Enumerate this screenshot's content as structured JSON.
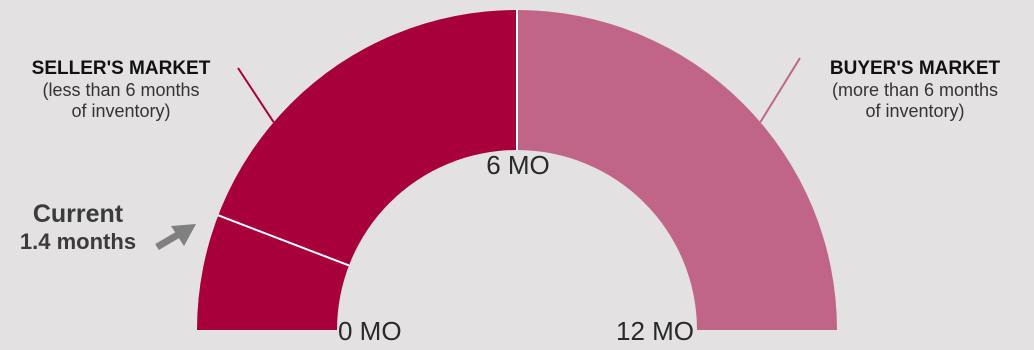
{
  "colors": {
    "background": "#e3e1e1",
    "seller": "#a7003b",
    "buyer": "#c06587",
    "divider": "#ffffff",
    "arrow": "#808080"
  },
  "chart_data": {
    "type": "gauge",
    "min": 0,
    "max": 12,
    "unit": "months of inventory",
    "current": 1.4,
    "segments": [
      {
        "name": "SELLER'S MARKET",
        "from": 0,
        "to": 6
      },
      {
        "name": "BUYER'S MARKET",
        "from": 6,
        "to": 12
      }
    ],
    "ticks": [
      {
        "value": 0,
        "label": "0 MO"
      },
      {
        "value": 6,
        "label": "6 MO"
      },
      {
        "value": 12,
        "label": "12 MO"
      }
    ],
    "seller_label": {
      "title": "SELLER'S MARKET",
      "note_line1": "(less than 6 months",
      "note_line2": "of inventory)"
    },
    "buyer_label": {
      "title": "BUYER'S MARKET",
      "note_line1": "(more than 6 months",
      "note_line2": "of inventory)"
    },
    "current_label": {
      "title": "Current",
      "value_text": "1.4 months"
    }
  }
}
